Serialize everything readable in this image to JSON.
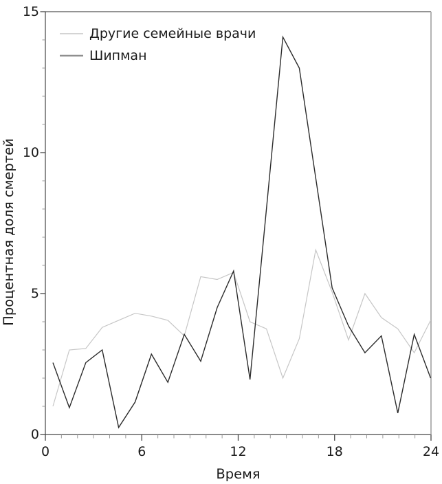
{
  "chart_data": {
    "type": "line",
    "title": "",
    "xlabel": "Время",
    "ylabel": "Процентная доля смертей",
    "xlim": [
      0,
      24
    ],
    "ylim": [
      0,
      15
    ],
    "x_tick_values": [
      0,
      6,
      12,
      18,
      24
    ],
    "x_tick_labels": [
      "0",
      "6",
      "12",
      "18",
      "24"
    ],
    "y_tick_values": [
      0,
      5,
      10,
      15
    ],
    "y_tick_labels": [
      "0",
      "5",
      "10",
      "15"
    ],
    "minor_tick_interval": 1,
    "grid": false,
    "legend_position": "top-left-inside",
    "x": [
      0.5,
      1.5,
      2.5,
      3.5,
      4.5,
      5.5,
      6.5,
      7.5,
      8.5,
      9.5,
      10.5,
      11.5,
      12.5,
      13.5,
      14.5,
      15.5,
      16.5,
      17.5,
      18.5,
      19.5,
      20.5,
      21.5,
      22.5,
      23.5
    ],
    "series": [
      {
        "name": "Другие семейные врачи",
        "color": "#c6c6c6",
        "line_width": 1.2,
        "legend_swatch_color": "#c6c6c6",
        "legend_swatch_width": 1.4,
        "values": [
          1.0,
          3.0,
          3.05,
          3.8,
          4.05,
          4.3,
          4.2,
          4.05,
          3.5,
          5.6,
          5.5,
          5.75,
          4.0,
          3.75,
          2.0,
          3.4,
          6.55,
          5.05,
          3.35,
          5.0,
          4.15,
          3.75,
          2.9,
          4.05
        ]
      },
      {
        "name": "Шипман",
        "color": "#2b2b2b",
        "line_width": 1.4,
        "legend_swatch_color": "#8f8f8f",
        "legend_swatch_width": 2.4,
        "values": [
          2.55,
          0.95,
          2.55,
          3.0,
          0.25,
          1.15,
          2.85,
          1.85,
          3.55,
          2.6,
          4.5,
          5.8,
          1.95,
          8.0,
          14.1,
          13.0,
          9.1,
          5.2,
          3.85,
          2.9,
          3.5,
          0.76,
          3.55,
          2.0
        ]
      }
    ],
    "frame": {
      "spine_color": "#444444",
      "right_spine_color": "#b3b3b3",
      "major_tick_color": "#444444",
      "minor_tick_color": "#999999"
    }
  }
}
